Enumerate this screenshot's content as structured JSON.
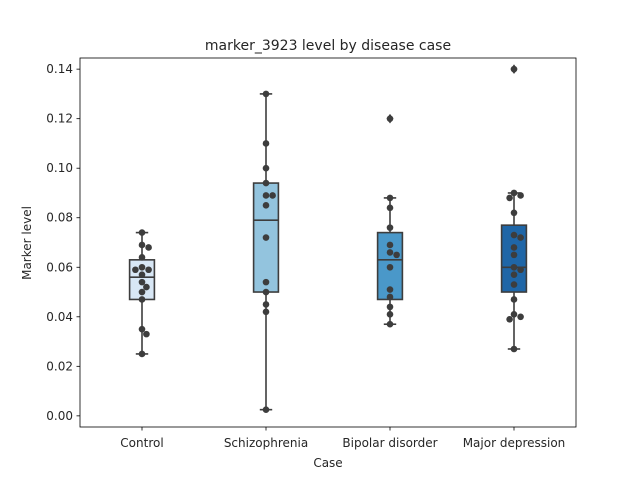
{
  "chart_data": {
    "type": "box",
    "title": "marker_3923 level by disease case",
    "xlabel": "Case",
    "ylabel": "Marker level",
    "ylim": [
      -0.0045,
      0.1445
    ],
    "yticks": [
      "0.00",
      "0.02",
      "0.04",
      "0.06",
      "0.08",
      "0.10",
      "0.12",
      "0.14"
    ],
    "ytick_values": [
      0.0,
      0.02,
      0.04,
      0.06,
      0.08,
      0.1,
      0.12,
      0.14
    ],
    "grid": false,
    "categories": [
      "Control",
      "Schizophrenia",
      "Bipolar disorder",
      "Major depression"
    ],
    "colors": [
      "#d8e7f5",
      "#93c4de",
      "#4a98c9",
      "#1f66a7"
    ],
    "boxes": [
      {
        "whislo": 0.025,
        "q1": 0.047,
        "median": 0.056,
        "q3": 0.063,
        "whishi": 0.074,
        "fliers": []
      },
      {
        "whislo": 0.0025,
        "q1": 0.05,
        "median": 0.079,
        "q3": 0.094,
        "whishi": 0.13,
        "fliers": []
      },
      {
        "whislo": 0.037,
        "q1": 0.047,
        "median": 0.063,
        "q3": 0.074,
        "whishi": 0.088,
        "fliers": [
          0.12
        ]
      },
      {
        "whislo": 0.027,
        "q1": 0.05,
        "median": 0.06,
        "q3": 0.077,
        "whishi": 0.09,
        "fliers": [
          0.14
        ]
      }
    ],
    "points": [
      [
        0.074,
        0.069,
        0.068,
        0.064,
        0.06,
        0.059,
        0.059,
        0.057,
        0.054,
        0.052,
        0.05,
        0.047,
        0.035,
        0.033,
        0.025
      ],
      [
        0.13,
        0.11,
        0.1,
        0.094,
        0.089,
        0.089,
        0.085,
        0.072,
        0.054,
        0.05,
        0.045,
        0.042,
        0.0025
      ],
      [
        0.12,
        0.088,
        0.084,
        0.076,
        0.069,
        0.066,
        0.065,
        0.06,
        0.051,
        0.048,
        0.044,
        0.041,
        0.037
      ],
      [
        0.14,
        0.09,
        0.089,
        0.088,
        0.082,
        0.073,
        0.072,
        0.068,
        0.065,
        0.06,
        0.059,
        0.057,
        0.053,
        0.047,
        0.041,
        0.04,
        0.039,
        0.027
      ]
    ]
  }
}
